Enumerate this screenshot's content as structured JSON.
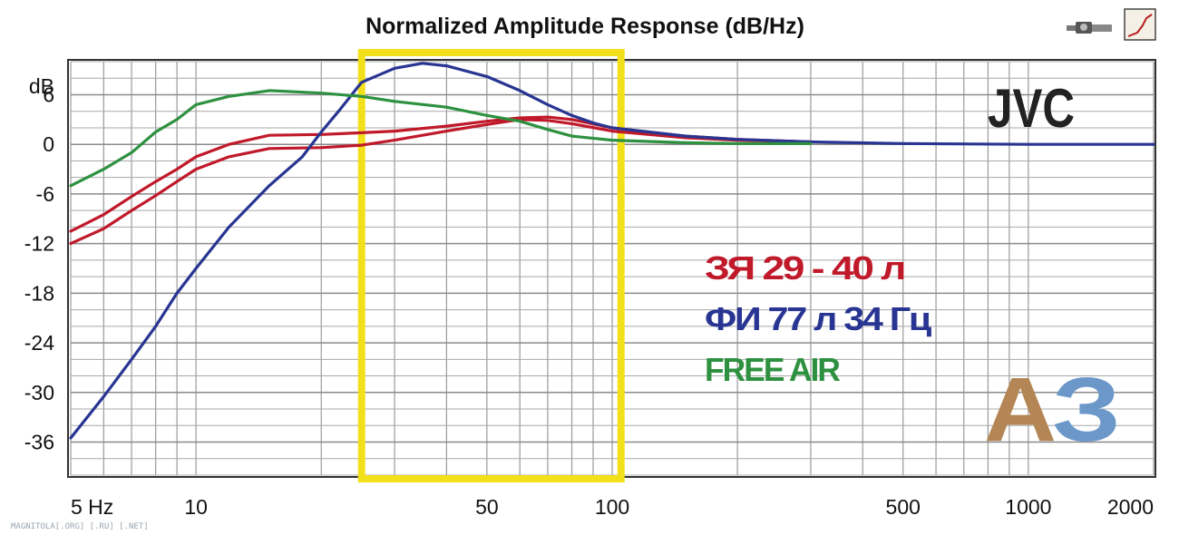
{
  "chart_data": {
    "type": "line",
    "title": "Normalized Amplitude Response (dB/Hz)",
    "xscale": "log",
    "xlim": [
      5,
      2000
    ],
    "ylim": [
      -40,
      10
    ],
    "ylabel": "dB",
    "grid": true,
    "x_tick_labels": [
      {
        "x": 5,
        "label": "5 Hz"
      },
      {
        "x": 10,
        "label": "10"
      },
      {
        "x": 50,
        "label": "50"
      },
      {
        "x": 100,
        "label": "100"
      },
      {
        "x": 500,
        "label": "500"
      },
      {
        "x": 1000,
        "label": "1000"
      },
      {
        "x": 2000,
        "label": "2000"
      }
    ],
    "y_tick_labels": [
      {
        "y": 6,
        "label": "6"
      },
      {
        "y": 0,
        "label": "0"
      },
      {
        "y": -6,
        "label": "-6"
      },
      {
        "y": -12,
        "label": "-12"
      },
      {
        "y": -18,
        "label": "-18"
      },
      {
        "y": -24,
        "label": "-24"
      },
      {
        "y": -30,
        "label": "-30"
      },
      {
        "y": -36,
        "label": "-36"
      }
    ],
    "highlight_band": {
      "x": [
        25,
        105
      ],
      "color": "#f2e01a"
    },
    "series": [
      {
        "color": "#c0192a",
        "x": [
          5,
          6,
          7,
          8,
          9,
          10,
          12,
          15,
          20,
          25,
          30,
          40,
          50,
          60,
          70,
          80,
          100,
          150,
          200,
          300
        ],
        "y": [
          -10.5,
          -8.5,
          -6.3,
          -4.5,
          -3.0,
          -1.5,
          0,
          1.1,
          1.2,
          1.4,
          1.6,
          2.2,
          2.8,
          3.2,
          3.3,
          3.0,
          2.0,
          1.0,
          0.6,
          0.3
        ]
      },
      {
        "color": "#c0192a",
        "x": [
          5,
          6,
          7,
          8,
          9,
          10,
          12,
          15,
          20,
          25,
          30,
          40,
          50,
          60,
          70,
          80,
          100,
          150,
          200,
          300
        ],
        "y": [
          -12.0,
          -10.2,
          -8.0,
          -6.2,
          -4.5,
          -3.0,
          -1.5,
          -0.5,
          -0.4,
          -0.1,
          0.5,
          1.6,
          2.4,
          3.0,
          2.9,
          2.5,
          1.6,
          0.8,
          0.5,
          0.3
        ]
      },
      {
        "color": "#283592",
        "x": [
          5,
          6,
          7,
          8,
          9,
          10,
          12,
          15,
          18,
          20,
          22,
          25,
          30,
          35,
          40,
          50,
          60,
          70,
          80,
          90,
          100,
          150,
          200,
          300,
          500,
          1000,
          2000
        ],
        "y": [
          -35.5,
          -30.5,
          -26,
          -22,
          -18,
          -15,
          -10,
          -5,
          -1.5,
          1.5,
          4,
          7.5,
          9.2,
          9.8,
          9.5,
          8.2,
          6.5,
          4.8,
          3.5,
          2.6,
          2.0,
          1.0,
          0.6,
          0.3,
          0.1,
          0,
          0
        ]
      },
      {
        "color": "#2e9140",
        "x": [
          5,
          6,
          7,
          8,
          9,
          10,
          12,
          15,
          20,
          25,
          30,
          40,
          50,
          60,
          70,
          80,
          100,
          150,
          200,
          300
        ],
        "y": [
          -5,
          -3,
          -1,
          1.5,
          3,
          4.8,
          5.8,
          6.5,
          6.2,
          5.8,
          5.2,
          4.5,
          3.5,
          2.8,
          1.8,
          1.0,
          0.5,
          0.2,
          0.1,
          0.1
        ]
      }
    ],
    "annotations": [
      "JVC",
      "ЗЯ 29 - 40 л",
      "ФИ 77 л 34 Гц",
      "FREE AIR"
    ],
    "annotation_colors": [
      "#222222",
      "#c0192a",
      "#283592",
      "#2e9140"
    ]
  },
  "logo": {
    "part1": "А",
    "part2": "З",
    "color1": "#b48555",
    "color2": "#6c97c9"
  },
  "footer": {
    "watermark": "MAGNITOLA[.ORG] [.RU] [.NET]"
  }
}
